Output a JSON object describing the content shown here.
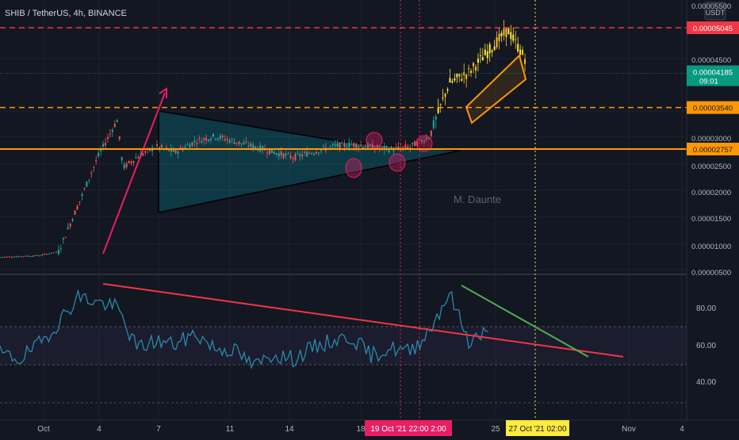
{
  "header": {
    "title": "SHIB / TetherUS, 4h, BINANCE"
  },
  "currency": "USDT",
  "watermark": "M. Daunte",
  "price_axis": {
    "ticks": [
      "0.00005500",
      "0.00004500",
      "0.00003000",
      "0.00002500",
      "0.00002000",
      "0.00001500",
      "0.00001000",
      "0.00000500"
    ]
  },
  "rsi_axis": {
    "ticks": [
      "80.00",
      "60.00",
      "40.00"
    ]
  },
  "time_axis": {
    "ticks": [
      "Oct",
      "4",
      "7",
      "11",
      "14",
      "18",
      "25",
      "Nov",
      "4"
    ],
    "highlight_pink": "19 Oct '21   22:00   2:00",
    "highlight_yellow": "27 Oct '21   02:00"
  },
  "levels": [
    {
      "label": "0.00005045",
      "value": 5.045e-05,
      "color": "#f23645",
      "dashed": true
    },
    {
      "label": "0.00003540",
      "value": 3.54e-05,
      "color": "#ff9800",
      "dashed": true
    },
    {
      "label": "0.00002757",
      "value": 2.757e-05,
      "color": "#ff9800",
      "dashed": false
    }
  ],
  "last_price": {
    "label": "0.00004185",
    "countdown": "09:01",
    "value": 4.185e-05,
    "color": "#089981"
  },
  "colors": {
    "up": "#26a69a",
    "down": "#ef5350",
    "rsi": "#2962ff",
    "pink": "#e91e63",
    "yellow": "#ffeb3b"
  },
  "chart_data": {
    "type": "line",
    "title": "SHIB / TetherUS, 4h, BINANCE",
    "x": [
      "Oct",
      "4",
      "7",
      "11",
      "14",
      "18",
      "25",
      "Nov",
      "4"
    ],
    "series": [
      {
        "values": [
          [
            1,
            7.2e-06
          ],
          [
            2,
            7.3e-06
          ],
          [
            3,
            7.5e-06
          ],
          [
            4,
            8.2e-06
          ],
          [
            5,
            1.7e-05
          ],
          [
            6,
            2.6e-05
          ],
          [
            7,
            3.3e-05
          ],
          [
            7.3,
            2.4e-05
          ],
          [
            8,
            2.6e-05
          ],
          [
            9,
            2.8e-05
          ],
          [
            10,
            2.7e-05
          ],
          [
            11,
            2.9e-05
          ],
          [
            12,
            3e-05
          ],
          [
            13,
            2.9e-05
          ],
          [
            14,
            2.8e-05
          ],
          [
            15,
            2.7e-05
          ],
          [
            16,
            2.6e-05
          ],
          [
            17,
            2.7e-05
          ],
          [
            18,
            2.8e-05
          ],
          [
            19,
            2.85e-05
          ],
          [
            20,
            2.8e-05
          ],
          [
            21,
            2.75e-05
          ],
          [
            22,
            2.8e-05
          ],
          [
            23,
            3e-05
          ],
          [
            24,
            4e-05
          ],
          [
            25,
            4.2e-05
          ],
          [
            26,
            4.6e-05
          ],
          [
            27,
            5e-05
          ],
          [
            28,
            4.4e-05
          ]
        ]
      },
      {
        "values": [
          [
            1,
            55
          ],
          [
            2,
            52
          ],
          [
            3,
            60
          ],
          [
            4,
            72
          ],
          [
            5,
            86
          ],
          [
            6,
            83
          ],
          [
            7,
            80
          ],
          [
            8,
            58
          ],
          [
            9,
            62
          ],
          [
            10,
            60
          ],
          [
            11,
            66
          ],
          [
            12,
            58
          ],
          [
            13,
            57
          ],
          [
            14,
            48
          ],
          [
            15,
            55
          ],
          [
            16,
            52
          ],
          [
            17,
            58
          ],
          [
            18,
            62
          ],
          [
            19,
            64
          ],
          [
            20,
            54
          ],
          [
            21,
            58
          ],
          [
            22,
            56
          ],
          [
            23,
            68
          ],
          [
            24,
            88
          ],
          [
            25,
            62
          ],
          [
            26,
            67
          ]
        ]
      }
    ],
    "ylim": [
      5e-06,
      5.5e-05
    ],
    "rsi_ylim": [
      30,
      90
    ],
    "annotations": [
      "M. Daunte"
    ]
  }
}
